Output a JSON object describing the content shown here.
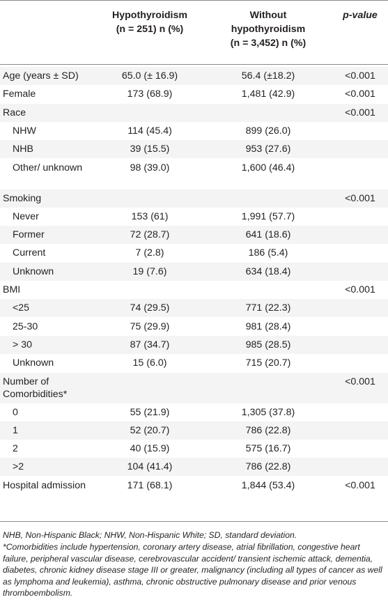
{
  "header": {
    "col1_line1": "Hypothyroidism",
    "col1_line2_n": "(n = 251) n (%)",
    "col2_line1": "Without",
    "col2_line2": "hypothyroidism",
    "col2_line3": "(n = 3,452) n (%)",
    "col3": "p-value"
  },
  "rows": [
    {
      "label": "Age (years ± SD)",
      "hypo": "65.0 (± 16.9)",
      "without": "56.4 (±18.2)",
      "p": "<0.001"
    },
    {
      "label": "Female",
      "hypo": "173 (68.9)",
      "without": "1,481 (42.9)",
      "p": "<0.001"
    },
    {
      "label": "Race",
      "hypo": "",
      "without": "",
      "p": "<0.001"
    },
    {
      "label": "NHW",
      "hypo": "114 (45.4)",
      "without": "899 (26.0)",
      "p": ""
    },
    {
      "label": "NHB",
      "hypo": "39 (15.5)",
      "without": "953 (27.6)",
      "p": ""
    },
    {
      "label": "Other/ unknown",
      "hypo": "98 (39.0)",
      "without": "1,600 (46.4)",
      "p": ""
    },
    {
      "label": "Smoking",
      "hypo": "",
      "without": "",
      "p": "<0.001"
    },
    {
      "label": "Never",
      "hypo": "153 (61)",
      "without": "1,991 (57.7)",
      "p": ""
    },
    {
      "label": "Former",
      "hypo": "72 (28.7)",
      "without": "641 (18.6)",
      "p": ""
    },
    {
      "label": "Current",
      "hypo": "7 (2.8)",
      "without": "186 (5.4)",
      "p": ""
    },
    {
      "label": "Unknown",
      "hypo": "19 (7.6)",
      "without": "634 (18.4)",
      "p": ""
    },
    {
      "label": "BMI",
      "hypo": "",
      "without": "",
      "p": "<0.001"
    },
    {
      "label": "<25",
      "hypo": "74 (29.5)",
      "without": "771 (22.3)",
      "p": ""
    },
    {
      "label": "25-30",
      "hypo": "75 (29.9)",
      "without": "981 (28.4)",
      "p": ""
    },
    {
      "label": "> 30",
      "hypo": "87 (34.7)",
      "without": "985 (28.5)",
      "p": ""
    },
    {
      "label": "Unknown",
      "hypo": "15 (6.0)",
      "without": "715 (20.7)",
      "p": ""
    },
    {
      "label": "Number of Comorbidities*",
      "hypo": "",
      "without": "",
      "p": "<0.001"
    },
    {
      "label": "0",
      "hypo": "55 (21.9)",
      "without": "1,305 (37.8)",
      "p": ""
    },
    {
      "label": "1",
      "hypo": "52 (20.7)",
      "without": "786 (22.8)",
      "p": ""
    },
    {
      "label": "2",
      "hypo": "40 (15.9)",
      "without": "575 (16.7)",
      "p": ""
    },
    {
      "label": ">2",
      "hypo": "104 (41.4)",
      "without": "786 (22.8)",
      "p": ""
    },
    {
      "label": "Hospital admission",
      "hypo": "171 (68.1)",
      "without": "1,844 (53.4)",
      "p": "<0.001"
    }
  ],
  "footnotes": {
    "abbreviations": "NHB, Non-Hispanic Black; NHW, Non-Hispanic White; SD, standard deviation.",
    "comorbidities": "*Comorbidities include hypertension, coronary artery disease, atrial fibrillation, congestive heart failure, peripheral vascular disease, cerebrovascular accident/ transient ischemic attack, dementia, diabetes, chronic kidney disease stage III or greater, malignancy (including all types of cancer as well as lymphoma and leukemia), asthma, chronic obstructive pulmonary disease and prior venous thromboembolism."
  }
}
